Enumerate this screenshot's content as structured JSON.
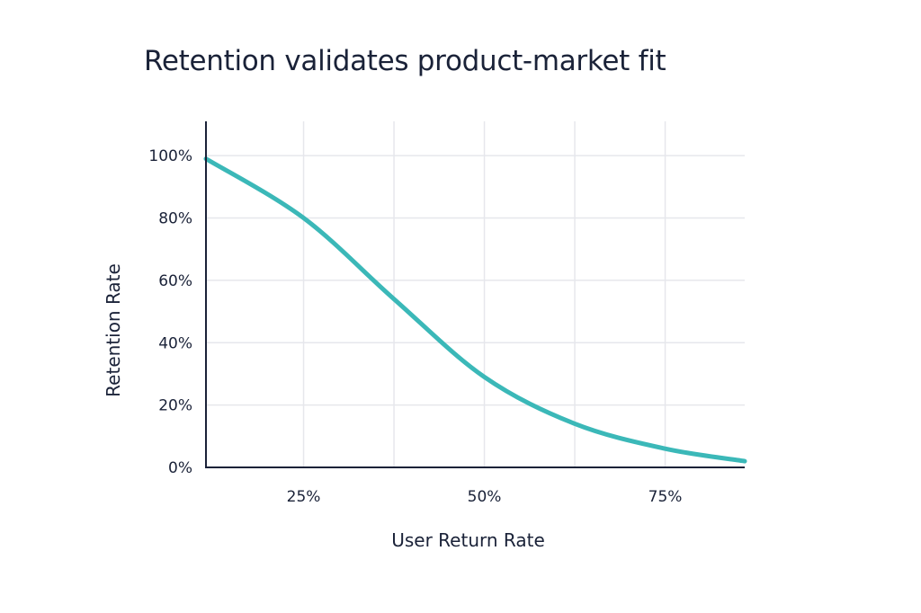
{
  "chart_data": {
    "type": "line",
    "title": "Retention validates product-market fit",
    "xlabel": "User Return Rate",
    "ylabel": "Retention Rate",
    "xlim": [
      11.5,
      86
    ],
    "ylim": [
      0,
      111
    ],
    "x_ticks": [
      25,
      50,
      75
    ],
    "x_tick_labels": [
      "25%",
      "50%",
      "75%"
    ],
    "x_gridlines": [
      25,
      37.5,
      50,
      62.5,
      75
    ],
    "y_ticks": [
      0,
      20,
      40,
      60,
      80,
      100
    ],
    "y_tick_labels": [
      "0%",
      "20%",
      "40%",
      "60%",
      "80%",
      "100%"
    ],
    "grid": true,
    "series": [
      {
        "name": "Retention",
        "color": "#3bb8b8",
        "x": [
          11.5,
          25,
          37.5,
          50,
          62.5,
          75,
          86
        ],
        "y": [
          99,
          80,
          54,
          29,
          14,
          6,
          2
        ]
      }
    ]
  }
}
